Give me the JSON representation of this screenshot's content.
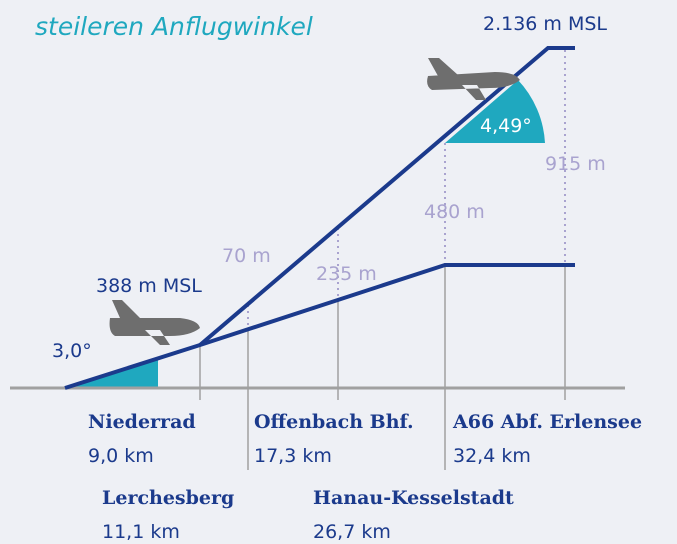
{
  "title": "steileren Anflugwinkel",
  "altitudes": {
    "low": "388 m MSL",
    "high": "2.136 m MSL"
  },
  "angles": {
    "low": "3,0°",
    "high": "4,49°"
  },
  "heights": [
    "70 m",
    "235 m",
    "480 m",
    "915 m"
  ],
  "places": [
    {
      "name": "Niederrad",
      "distance": "9,0 km"
    },
    {
      "name": "Lerchesberg",
      "distance": "11,1 km"
    },
    {
      "name": "Offenbach Bhf.",
      "distance": "17,3 km"
    },
    {
      "name": "Hanau-Kesselstadt",
      "distance": "26,7 km"
    },
    {
      "name": "A66 Abf. Erlensee",
      "distance": "32,4 km"
    }
  ]
}
